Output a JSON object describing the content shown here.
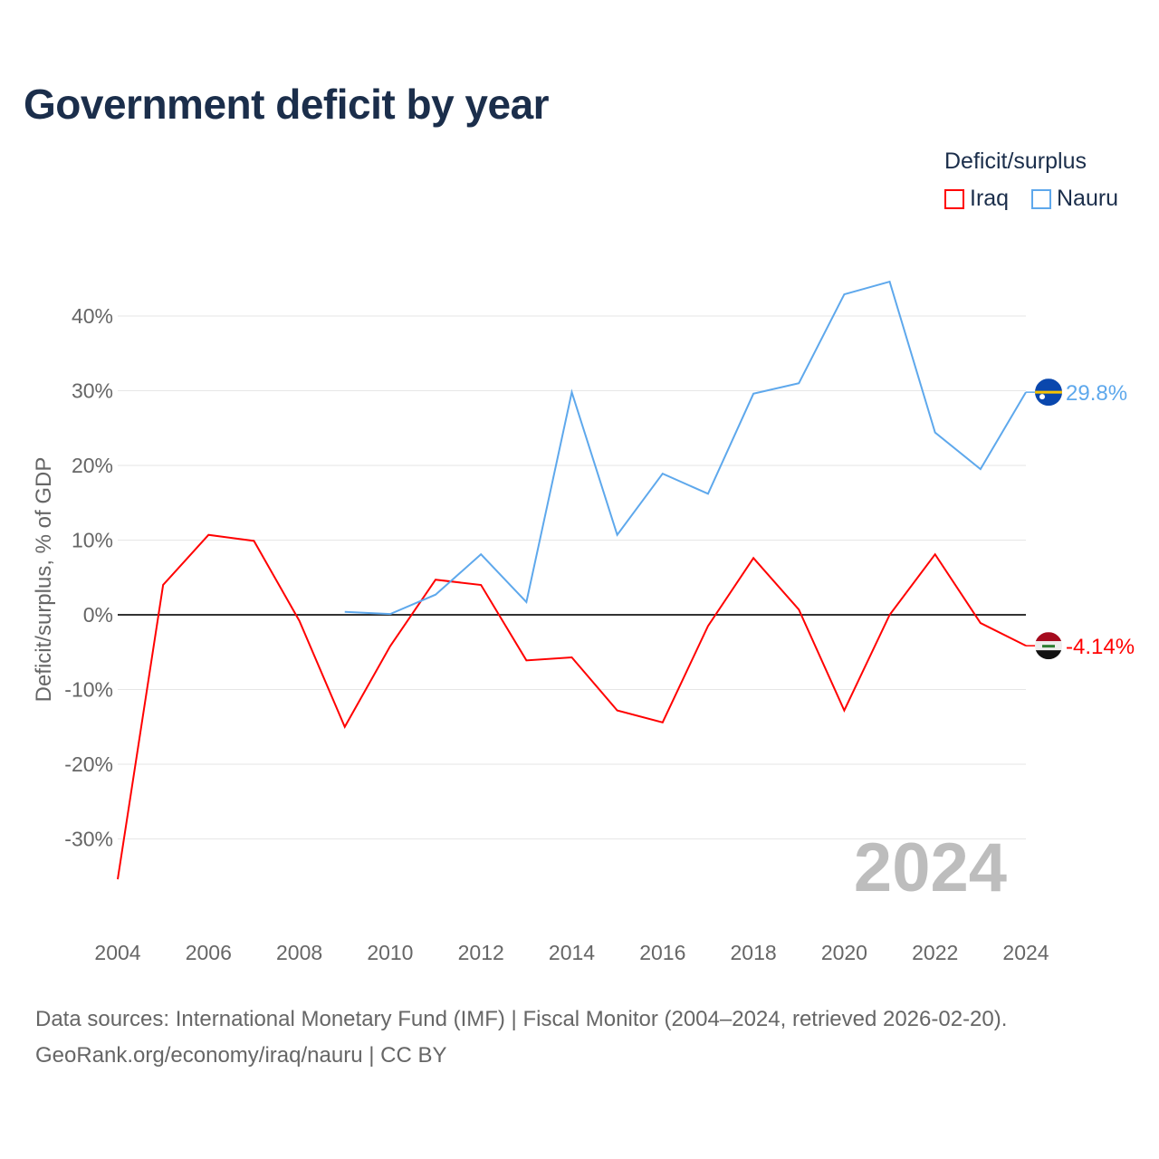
{
  "chart_data": {
    "type": "line",
    "title": "Government deficit by year",
    "ylabel": "Deficit/surplus, % of GDP",
    "xlabel": "",
    "legend_title": "Deficit/surplus",
    "legend_placement": "top-right",
    "ylim": [
      -35.5,
      45
    ],
    "xlim": [
      2004,
      2024
    ],
    "yticks": [
      -30,
      -20,
      -10,
      0,
      10,
      20,
      30,
      40
    ],
    "ytick_labels": [
      "-30%",
      "-20%",
      "-10%",
      "0%",
      "10%",
      "20%",
      "30%",
      "40%"
    ],
    "xticks": [
      2004,
      2006,
      2008,
      2010,
      2012,
      2014,
      2016,
      2018,
      2020,
      2022,
      2024
    ],
    "xtick_labels": [
      "2004",
      "2006",
      "2008",
      "2010",
      "2012",
      "2014",
      "2016",
      "2018",
      "2020",
      "2022",
      "2024"
    ],
    "grid": true,
    "year_watermark": "2024",
    "series": [
      {
        "name": "Iraq",
        "color": "#ff0000",
        "end_label": "-4.14%",
        "flag": "iraq-flag",
        "x": [
          2004,
          2005,
          2006,
          2007,
          2008,
          2009,
          2010,
          2011,
          2012,
          2013,
          2014,
          2015,
          2016,
          2017,
          2018,
          2019,
          2020,
          2021,
          2022,
          2023,
          2024
        ],
        "values": [
          -35.4,
          4.0,
          10.7,
          9.9,
          -0.8,
          -15.0,
          -4.2,
          4.7,
          4.0,
          -6.1,
          -5.7,
          -12.8,
          -14.4,
          -1.5,
          7.6,
          0.7,
          -12.8,
          0.0,
          8.1,
          -1.1,
          -4.14
        ]
      },
      {
        "name": "Nauru",
        "color": "#5ea8ec",
        "end_label": "29.8%",
        "flag": "nauru-flag",
        "x": [
          2009,
          2010,
          2011,
          2012,
          2013,
          2014,
          2015,
          2016,
          2017,
          2018,
          2019,
          2020,
          2021,
          2022,
          2023,
          2024
        ],
        "values": [
          0.4,
          0.1,
          2.7,
          8.1,
          1.7,
          29.8,
          10.7,
          18.9,
          16.2,
          29.6,
          31.0,
          42.9,
          44.6,
          24.4,
          19.5,
          29.8
        ]
      }
    ]
  },
  "footer": {
    "line1": "Data sources: International Monetary Fund (IMF) | Fiscal Monitor (2004–2024, retrieved 2026-02-20).",
    "line2": "GeoRank.org/economy/iraq/nauru | CC BY"
  }
}
